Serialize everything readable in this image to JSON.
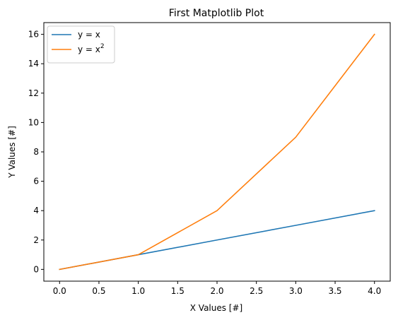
{
  "chart_data": {
    "type": "line",
    "title": "First Matplotlib Plot",
    "xlabel": "X Values [#]",
    "ylabel": "Y Values [#]",
    "xlim": [
      -0.2,
      4.2
    ],
    "ylim": [
      -0.8,
      16.8
    ],
    "xticks": [
      0.0,
      0.5,
      1.0,
      1.5,
      2.0,
      2.5,
      3.0,
      3.5,
      4.0
    ],
    "xtick_labels": [
      "0.0",
      "0.5",
      "1.0",
      "1.5",
      "2.0",
      "2.5",
      "3.0",
      "3.5",
      "4.0"
    ],
    "yticks": [
      0,
      2,
      4,
      6,
      8,
      10,
      12,
      14,
      16
    ],
    "ytick_labels": [
      "0",
      "2",
      "4",
      "6",
      "8",
      "10",
      "12",
      "14",
      "16"
    ],
    "grid": false,
    "legend_position": "top-left",
    "x": [
      0,
      1,
      2,
      3,
      4
    ],
    "series": [
      {
        "name": "y = x",
        "label_base": "y = x",
        "label_sup": "",
        "color": "#1f77b4",
        "values": [
          0,
          1,
          2,
          3,
          4
        ]
      },
      {
        "name": "y = x²",
        "label_base": "y = x",
        "label_sup": "2",
        "color": "#ff7f0e",
        "values": [
          0,
          1,
          4,
          9,
          16
        ]
      }
    ]
  }
}
